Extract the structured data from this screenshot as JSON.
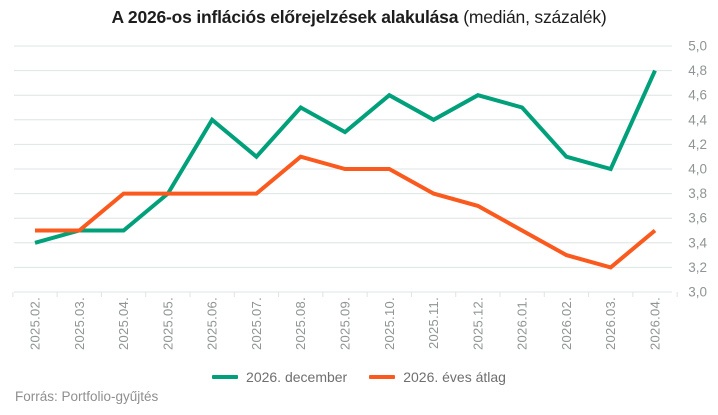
{
  "title": {
    "bold": "A 2026-os inflációs előrejelzések alakulása",
    "normal": "(medián, százalék)"
  },
  "footer": {
    "source": "Forrás: Portfolio-gyűjtés"
  },
  "colors": {
    "series_december": "#00a07a",
    "series_average": "#fa5a1e",
    "grid": "#dde4e4",
    "axis_text": "#8f9494",
    "legend_text": "#6f6f6f",
    "title_text": "#1d1d1d",
    "background": "#ffffff"
  },
  "chart_data": {
    "type": "line",
    "title": "A 2026-os inflációs előrejelzések alakulása (medián, százalék)",
    "categories": [
      "2025.02.",
      "2025.03.",
      "2025.04.",
      "2025.05.",
      "2025.06.",
      "2025.07.",
      "2025.08.",
      "2025.09.",
      "2025.10.",
      "2025.11.",
      "2025.12.",
      "2026.01.",
      "2026.02.",
      "2026.03.",
      "2026.04."
    ],
    "series": [
      {
        "name": "2026. december",
        "color_key": "series_december",
        "values": [
          3.4,
          3.5,
          3.5,
          3.8,
          4.4,
          4.1,
          4.5,
          4.3,
          4.6,
          4.4,
          4.6,
          4.5,
          4.1,
          4.0,
          4.8
        ]
      },
      {
        "name": "2026. éves átlag",
        "color_key": "series_average",
        "values": [
          3.5,
          3.5,
          3.8,
          3.8,
          3.8,
          3.8,
          4.1,
          4.0,
          4.0,
          3.8,
          3.7,
          3.5,
          3.3,
          3.2,
          3.5
        ]
      }
    ],
    "y_axis": {
      "min": 3.0,
      "max": 5.0,
      "step": 0.2,
      "side": "right",
      "decimal_separator": ",",
      "tick_labels": [
        "3,0",
        "3,2",
        "3,4",
        "3,6",
        "3,8",
        "4,0",
        "4,2",
        "4,4",
        "4,6",
        "4,8",
        "5,0"
      ]
    },
    "xlabel": "",
    "ylabel": "",
    "grid": "horizontal",
    "legend_position": "bottom",
    "x_label_rotation": -90
  }
}
